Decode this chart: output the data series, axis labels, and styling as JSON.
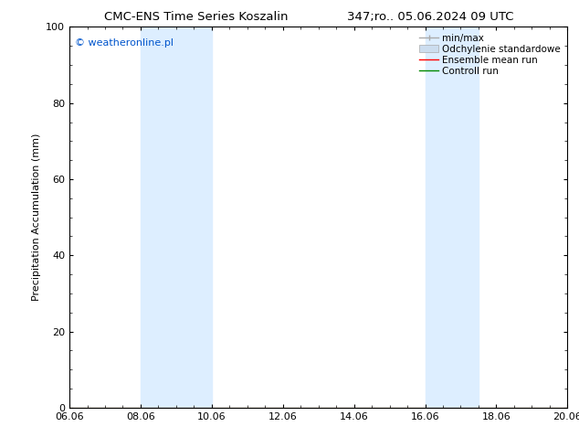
{
  "title": "CMC-ENS Time Series Koszalin",
  "title_right": "347;ro.. 05.06.2024 09 UTC",
  "ylabel": "Precipitation Accumulation (mm)",
  "watermark": "© weatheronline.pl",
  "watermark_color": "#0055cc",
  "ylim": [
    0,
    100
  ],
  "yticks": [
    0,
    20,
    40,
    60,
    80,
    100
  ],
  "shaded_regions": [
    {
      "x_start": 2.0,
      "x_end": 4.0
    },
    {
      "x_start": 10.0,
      "x_end": 11.5
    }
  ],
  "shaded_color": "#ddeeff",
  "x_tick_labels": [
    "06.06",
    "08.06",
    "10.06",
    "12.06",
    "14.06",
    "16.06",
    "18.06",
    "20.06"
  ],
  "x_tick_values": [
    0,
    2,
    4,
    6,
    8,
    10,
    12,
    14
  ],
  "x_lim": [
    0,
    14
  ],
  "legend_labels": [
    "min/max",
    "Odchylenie standardowe",
    "Ensemble mean run",
    "Controll run"
  ],
  "background_color": "#ffffff",
  "plot_bg_color": "#ffffff",
  "title_fontsize": 9.5,
  "axis_label_fontsize": 8,
  "tick_fontsize": 8,
  "legend_fontsize": 7.5,
  "watermark_fontsize": 8
}
